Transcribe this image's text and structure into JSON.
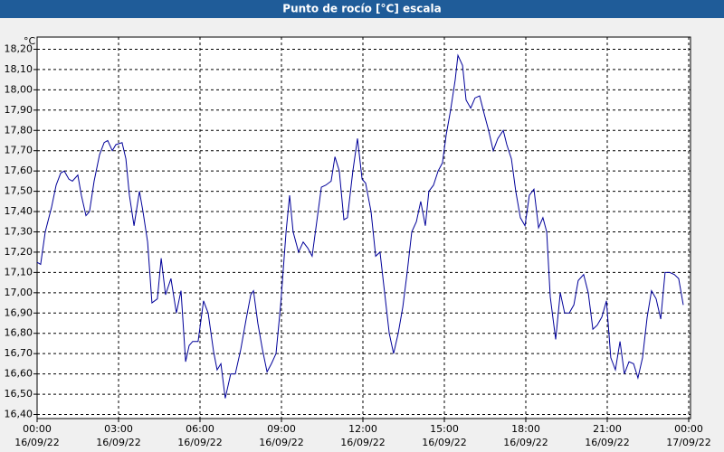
{
  "chart_data": {
    "type": "line",
    "title": "Punto de rocío [°C] escala",
    "y_unit": "°C",
    "x": [
      0,
      0.13,
      0.3,
      0.53,
      0.7,
      0.87,
      1,
      1.17,
      1.3,
      1.5,
      1.63,
      1.8,
      1.93,
      2.1,
      2.3,
      2.47,
      2.6,
      2.77,
      2.9,
      3.13,
      3.27,
      3.4,
      3.57,
      3.77,
      3.9,
      4.07,
      4.23,
      4.43,
      4.57,
      4.73,
      4.93,
      5.13,
      5.3,
      5.47,
      5.6,
      5.73,
      5.93,
      6.13,
      6.3,
      6.5,
      6.63,
      6.77,
      6.93,
      7.13,
      7.3,
      7.5,
      7.7,
      7.87,
      7.97,
      8.13,
      8.3,
      8.47,
      8.63,
      8.8,
      8.97,
      9.17,
      9.3,
      9.43,
      9.63,
      9.8,
      9.97,
      10.13,
      10.3,
      10.47,
      10.63,
      10.83,
      10.97,
      11.13,
      11.3,
      11.43,
      11.63,
      11.8,
      11.97,
      12.1,
      12.3,
      12.47,
      12.63,
      12.8,
      12.97,
      13.13,
      13.3,
      13.47,
      13.63,
      13.8,
      13.97,
      14.13,
      14.3,
      14.43,
      14.6,
      14.77,
      14.93,
      15.07,
      15.23,
      15.4,
      15.5,
      15.67,
      15.8,
      15.97,
      16.13,
      16.3,
      16.47,
      16.63,
      16.8,
      16.97,
      17.17,
      17.3,
      17.47,
      17.63,
      17.8,
      17.97,
      18.13,
      18.3,
      18.47,
      18.63,
      18.77,
      18.9,
      19.1,
      19.27,
      19.43,
      19.6,
      19.77,
      19.93,
      20.13,
      20.3,
      20.47,
      20.63,
      20.8,
      20.97,
      21.13,
      21.3,
      21.47,
      21.63,
      21.8,
      21.97,
      22.13,
      22.3,
      22.47,
      22.63,
      22.8,
      22.97,
      23.13,
      23.3,
      23.47,
      23.63,
      23.8
    ],
    "series": [
      {
        "name": "Punto de rocío",
        "color": "#000099",
        "values": [
          17.15,
          17.14,
          17.3,
          17.42,
          17.53,
          17.59,
          17.6,
          17.56,
          17.55,
          17.58,
          17.48,
          17.38,
          17.4,
          17.55,
          17.68,
          17.74,
          17.75,
          17.7,
          17.73,
          17.74,
          17.66,
          17.48,
          17.33,
          17.5,
          17.4,
          17.25,
          16.95,
          16.97,
          17.17,
          16.99,
          17.07,
          16.9,
          17.01,
          16.66,
          16.74,
          16.76,
          16.76,
          16.96,
          16.9,
          16.71,
          16.62,
          16.65,
          16.48,
          16.6,
          16.6,
          16.72,
          16.87,
          16.99,
          17.01,
          16.85,
          16.72,
          16.61,
          16.65,
          16.7,
          16.94,
          17.3,
          17.48,
          17.3,
          17.2,
          17.25,
          17.22,
          17.18,
          17.35,
          17.52,
          17.53,
          17.55,
          17.67,
          17.6,
          17.36,
          17.37,
          17.6,
          17.76,
          17.56,
          17.54,
          17.4,
          17.18,
          17.2,
          17.0,
          16.8,
          16.7,
          16.8,
          16.93,
          17.1,
          17.3,
          17.35,
          17.45,
          17.33,
          17.5,
          17.53,
          17.6,
          17.64,
          17.78,
          17.9,
          18.05,
          18.17,
          18.12,
          17.95,
          17.91,
          17.96,
          17.97,
          17.88,
          17.8,
          17.7,
          17.76,
          17.8,
          17.73,
          17.66,
          17.5,
          17.37,
          17.33,
          17.48,
          17.51,
          17.32,
          17.37,
          17.3,
          16.98,
          16.77,
          17.0,
          16.9,
          16.9,
          16.94,
          17.06,
          17.09,
          17.0,
          16.82,
          16.84,
          16.88,
          16.96,
          16.68,
          16.62,
          16.76,
          16.6,
          16.66,
          16.65,
          16.58,
          16.68,
          16.88,
          17.01,
          16.97,
          16.87,
          17.1,
          17.1,
          17.09,
          17.07,
          16.94
        ]
      }
    ],
    "xlim": [
      0,
      24
    ],
    "xticks": [
      {
        "value": 0,
        "label": "00:00"
      },
      {
        "value": 3,
        "label": "03:00"
      },
      {
        "value": 6,
        "label": "06:00"
      },
      {
        "value": 9,
        "label": "09:00"
      },
      {
        "value": 12,
        "label": "12:00"
      },
      {
        "value": 15,
        "label": "15:00"
      },
      {
        "value": 18,
        "label": "18:00"
      },
      {
        "value": 21,
        "label": "21:00"
      },
      {
        "value": 24,
        "label": "00:00"
      }
    ],
    "xtick_dates": [
      "16/09/22",
      "16/09/22",
      "16/09/22",
      "16/09/22",
      "16/09/22",
      "16/09/22",
      "16/09/22",
      "16/09/22",
      "17/09/22"
    ],
    "ylim": [
      16.38,
      18.26
    ],
    "yticks": [
      {
        "value": 16.4,
        "label": "16,40"
      },
      {
        "value": 16.5,
        "label": "16,50"
      },
      {
        "value": 16.6,
        "label": "16,60"
      },
      {
        "value": 16.7,
        "label": "16,70"
      },
      {
        "value": 16.8,
        "label": "16,80"
      },
      {
        "value": 16.9,
        "label": "16,90"
      },
      {
        "value": 17.0,
        "label": "17,00"
      },
      {
        "value": 17.1,
        "label": "17,10"
      },
      {
        "value": 17.2,
        "label": "17,20"
      },
      {
        "value": 17.3,
        "label": "17,30"
      },
      {
        "value": 17.4,
        "label": "17,40"
      },
      {
        "value": 17.5,
        "label": "17,50"
      },
      {
        "value": 17.6,
        "label": "17,60"
      },
      {
        "value": 17.7,
        "label": "17,70"
      },
      {
        "value": 17.8,
        "label": "17,80"
      },
      {
        "value": 17.9,
        "label": "17,90"
      },
      {
        "value": 18.0,
        "label": "18,00"
      },
      {
        "value": 18.1,
        "label": "18,10"
      },
      {
        "value": 18.2,
        "label": "18,20"
      }
    ],
    "grid": true
  }
}
